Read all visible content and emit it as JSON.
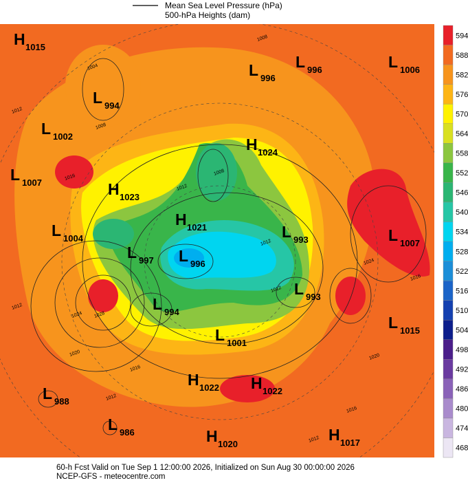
{
  "legend": {
    "line_label": "Mean Sea Level Pressure (hPa)",
    "fill_label": "500-hPa Heights (dam)"
  },
  "pressure_centers": [
    {
      "type": "H",
      "value": 1015
    },
    {
      "type": "L",
      "value": 994
    },
    {
      "type": "L",
      "value": 1002
    },
    {
      "type": "L",
      "value": 1007
    },
    {
      "type": "H",
      "value": 1023
    },
    {
      "type": "L",
      "value": 1004
    },
    {
      "type": "L",
      "value": 997
    },
    {
      "type": "L",
      "value": 996
    },
    {
      "type": "H",
      "value": 1021
    },
    {
      "type": "H",
      "value": 1024
    },
    {
      "type": "L",
      "value": 996
    },
    {
      "type": "L",
      "value": 996
    },
    {
      "type": "L",
      "value": 1006
    },
    {
      "type": "L",
      "value": 993
    },
    {
      "type": "L",
      "value": 1007
    },
    {
      "type": "L",
      "value": 993
    },
    {
      "type": "L",
      "value": 994
    },
    {
      "type": "L",
      "value": 1001
    },
    {
      "type": "L",
      "value": 1015
    },
    {
      "type": "L",
      "value": 988
    },
    {
      "type": "L",
      "value": 986
    },
    {
      "type": "H",
      "value": 1022
    },
    {
      "type": "H",
      "value": 1022
    },
    {
      "type": "H",
      "value": 1020
    },
    {
      "type": "H",
      "value": 1017
    }
  ],
  "contour_labels": [
    1008,
    1004,
    1012,
    1008,
    1016,
    1012,
    1008,
    1012,
    1024,
    1028,
    1020,
    1016,
    1012,
    1024,
    1016,
    1020,
    1016,
    1012,
    1012,
    1012
  ],
  "colorbar": {
    "levels": [
      {
        "value": 594,
        "color": "#e8202a"
      },
      {
        "value": 588,
        "color": "#f26a21"
      },
      {
        "value": 582,
        "color": "#f7941d"
      },
      {
        "value": 576,
        "color": "#fdb515"
      },
      {
        "value": 570,
        "color": "#fff200"
      },
      {
        "value": 564,
        "color": "#d9e021"
      },
      {
        "value": 558,
        "color": "#8cc63f"
      },
      {
        "value": 552,
        "color": "#39b54a"
      },
      {
        "value": 546,
        "color": "#2bb673"
      },
      {
        "value": 540,
        "color": "#26c6a6"
      },
      {
        "value": 534,
        "color": "#00d5f0"
      },
      {
        "value": 528,
        "color": "#00aeef"
      },
      {
        "value": 522,
        "color": "#1c8ed8"
      },
      {
        "value": 516,
        "color": "#1b64c8"
      },
      {
        "value": 510,
        "color": "#1440b0"
      },
      {
        "value": 504,
        "color": "#0d1e8c"
      },
      {
        "value": 498,
        "color": "#4b1e8a"
      },
      {
        "value": 492,
        "color": "#6a3aa0"
      },
      {
        "value": 486,
        "color": "#8a62b8"
      },
      {
        "value": 480,
        "color": "#a98bcc"
      },
      {
        "value": 474,
        "color": "#c9b6e0"
      },
      {
        "value": 468,
        "color": "#ece6f4"
      }
    ]
  },
  "footer": {
    "line1": "60-h Fcst Valid on Tue Sep  1 12:00:00 2026, Initialized on Sun Aug 30 00:00:00 2026",
    "line2": "NCEP-GFS  -  meteocentre.com"
  }
}
